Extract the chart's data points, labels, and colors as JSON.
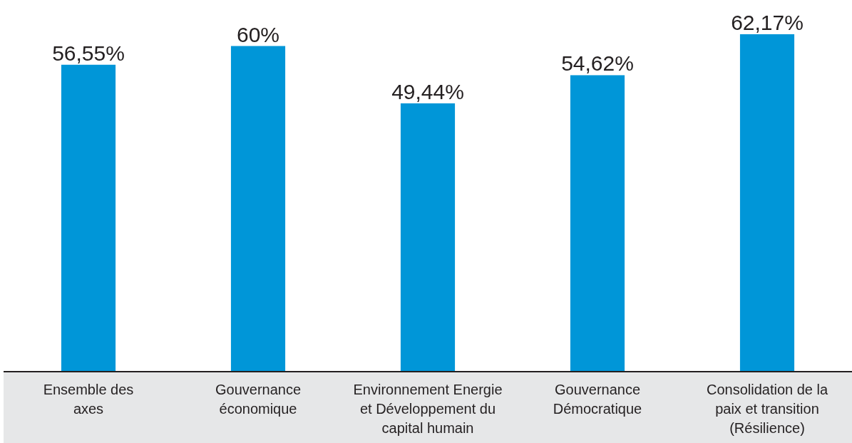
{
  "chart_data": {
    "type": "bar",
    "categories": [
      "Ensemble des axes",
      "Gouvernance économique",
      "Environnement Energie et Développement du capital humain",
      "Gouvernance Démocratique",
      "Consolidation de la paix et transition (Résilience)"
    ],
    "values": [
      56.55,
      60,
      49.44,
      54.62,
      62.17
    ],
    "value_labels": [
      "56,55%",
      "60%",
      "49,44%",
      "54,62%",
      "62,17%"
    ],
    "color": "#0096d8",
    "tick_labels": "x"
  }
}
